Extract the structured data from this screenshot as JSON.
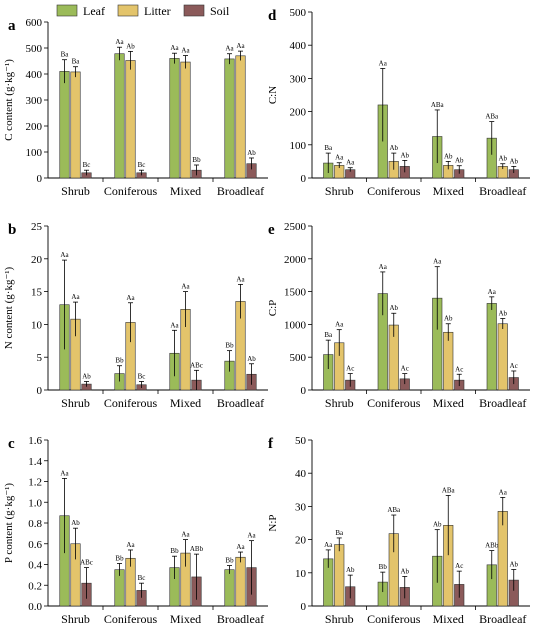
{
  "figure": {
    "legend": [
      {
        "name": "Leaf",
        "color": "#9bbb59"
      },
      {
        "name": "Litter",
        "color": "#e3c46b"
      },
      {
        "name": "Soil",
        "color": "#8b5a5a"
      }
    ]
  },
  "chart_data": [
    {
      "type": "bar",
      "panel": "a",
      "ylabel": "C content (g·kg⁻¹)",
      "ylim": [
        0,
        600
      ],
      "yticks": [
        0,
        100,
        200,
        300,
        400,
        500,
        600
      ],
      "categories": [
        "Shrub",
        "Coniferous",
        "Mixed",
        "Broadleaf"
      ],
      "series": [
        {
          "name": "Leaf",
          "values": [
            410,
            478,
            460,
            458
          ],
          "errors": [
            45,
            25,
            20,
            20
          ],
          "labels": [
            "Ba",
            "Aa",
            "Aa",
            "Aa"
          ]
        },
        {
          "name": "Litter",
          "values": [
            408,
            452,
            446,
            470
          ],
          "errors": [
            20,
            35,
            25,
            18
          ],
          "labels": [
            "Ba",
            "Ab",
            "Aa",
            "Aa"
          ]
        },
        {
          "name": "Soil",
          "values": [
            20,
            20,
            30,
            55
          ],
          "errors": [
            10,
            10,
            20,
            22
          ],
          "labels": [
            "Bc",
            "Bc",
            "Bb",
            "Ab"
          ]
        }
      ]
    },
    {
      "type": "bar",
      "panel": "b",
      "ylabel": "N content (g·kg⁻¹)",
      "ylim": [
        0,
        25
      ],
      "yticks": [
        0,
        5,
        10,
        15,
        20,
        25
      ],
      "categories": [
        "Shrub",
        "Coniferous",
        "Mixed",
        "Broadleaf"
      ],
      "series": [
        {
          "name": "Leaf",
          "values": [
            13.0,
            2.5,
            5.6,
            4.4
          ],
          "errors": [
            6.8,
            1.2,
            3.5,
            1.6
          ],
          "labels": [
            "Aa",
            "Bb",
            "Aa",
            "Bb"
          ]
        },
        {
          "name": "Litter",
          "values": [
            10.8,
            10.3,
            12.3,
            13.5
          ],
          "errors": [
            2.6,
            3.0,
            2.7,
            2.6
          ],
          "labels": [
            "Aa",
            "Aa",
            "Aa",
            "Aa"
          ]
        },
        {
          "name": "Soil",
          "values": [
            0.9,
            0.8,
            1.5,
            2.4
          ],
          "errors": [
            0.4,
            0.5,
            1.5,
            1.6
          ],
          "labels": [
            "Ab",
            "Bc",
            "ABc",
            "Ab"
          ]
        }
      ]
    },
    {
      "type": "bar",
      "panel": "c",
      "ylabel": "P content (g·kg⁻¹)",
      "ylim": [
        0,
        1.6
      ],
      "yticks": [
        0.0,
        0.2,
        0.4,
        0.6,
        0.8,
        1.0,
        1.2,
        1.4,
        1.6
      ],
      "categories": [
        "Shrub",
        "Coniferous",
        "Mixed",
        "Broadleaf"
      ],
      "series": [
        {
          "name": "Leaf",
          "values": [
            0.87,
            0.35,
            0.37,
            0.35
          ],
          "errors": [
            0.36,
            0.06,
            0.11,
            0.04
          ],
          "labels": [
            "Aa",
            "Bb",
            "Bb",
            "Bb"
          ]
        },
        {
          "name": "Litter",
          "values": [
            0.6,
            0.46,
            0.51,
            0.47
          ],
          "errors": [
            0.15,
            0.08,
            0.13,
            0.05
          ],
          "labels": [
            "Ab",
            "Aa",
            "Aa",
            "Aa"
          ]
        },
        {
          "name": "Soil",
          "values": [
            0.22,
            0.15,
            0.28,
            0.37
          ],
          "errors": [
            0.15,
            0.07,
            0.22,
            0.26
          ],
          "labels": [
            "ABc",
            "Bc",
            "ABb",
            "Aa"
          ]
        }
      ]
    },
    {
      "type": "bar",
      "panel": "d",
      "ylabel": "C:N",
      "ylim": [
        0,
        500
      ],
      "yticks": [
        0,
        100,
        200,
        300,
        400,
        500
      ],
      "categories": [
        "Shrub",
        "Coniferous",
        "Mixed",
        "Broadleaf"
      ],
      "series": [
        {
          "name": "Leaf",
          "values": [
            45,
            220,
            125,
            120
          ],
          "errors": [
            30,
            110,
            80,
            50
          ],
          "labels": [
            "Ba",
            "Aa",
            "ABa",
            "ABa"
          ]
        },
        {
          "name": "Litter",
          "values": [
            38,
            50,
            38,
            35
          ],
          "errors": [
            8,
            25,
            12,
            8
          ],
          "labels": [
            "Aa",
            "Ab",
            "Ab",
            "Ab"
          ]
        },
        {
          "name": "Soil",
          "values": [
            25,
            35,
            25,
            25
          ],
          "errors": [
            6,
            18,
            12,
            10
          ],
          "labels": [
            "Aa",
            "Ab",
            "Ab",
            "Ab"
          ]
        }
      ]
    },
    {
      "type": "bar",
      "panel": "e",
      "ylabel": "C:P",
      "ylim": [
        0,
        2500
      ],
      "yticks": [
        0,
        500,
        1000,
        1500,
        2000,
        2500
      ],
      "categories": [
        "Shrub",
        "Coniferous",
        "Mixed",
        "Broadleaf"
      ],
      "series": [
        {
          "name": "Leaf",
          "values": [
            540,
            1470,
            1400,
            1320
          ],
          "errors": [
            220,
            330,
            480,
            100
          ],
          "labels": [
            "Ba",
            "Aa",
            "Aa",
            "Aa"
          ]
        },
        {
          "name": "Litter",
          "values": [
            720,
            990,
            880,
            1010
          ],
          "errors": [
            200,
            180,
            130,
            80
          ],
          "labels": [
            "Aa",
            "Ab",
            "Ab",
            "Ab"
          ]
        },
        {
          "name": "Soil",
          "values": [
            150,
            170,
            150,
            190
          ],
          "errors": [
            100,
            80,
            90,
            100
          ],
          "labels": [
            "Ac",
            "Ac",
            "Ac",
            "Ac"
          ]
        }
      ]
    },
    {
      "type": "bar",
      "panel": "f",
      "ylabel": "N:P",
      "ylim": [
        0,
        50
      ],
      "yticks": [
        0,
        10,
        20,
        30,
        40,
        50
      ],
      "categories": [
        "Shrub",
        "Coniferous",
        "Mixed",
        "Broadleaf"
      ],
      "series": [
        {
          "name": "Leaf",
          "values": [
            14.2,
            7.2,
            15.0,
            12.4
          ],
          "errors": [
            2.7,
            3.0,
            8.0,
            4.3
          ],
          "labels": [
            "Aa",
            "Bb",
            "Ab",
            "ABb"
          ]
        },
        {
          "name": "Litter",
          "values": [
            18.5,
            21.8,
            24.3,
            28.5
          ],
          "errors": [
            2.0,
            5.6,
            9.0,
            4.2
          ],
          "labels": [
            "Ba",
            "ABa",
            "ABa",
            "Aa"
          ]
        },
        {
          "name": "Soil",
          "values": [
            5.8,
            5.6,
            6.5,
            7.8
          ],
          "errors": [
            3.5,
            3.3,
            4.0,
            3.2
          ],
          "labels": [
            "Ab",
            "Ab",
            "Ac",
            "Ab"
          ]
        }
      ]
    }
  ]
}
